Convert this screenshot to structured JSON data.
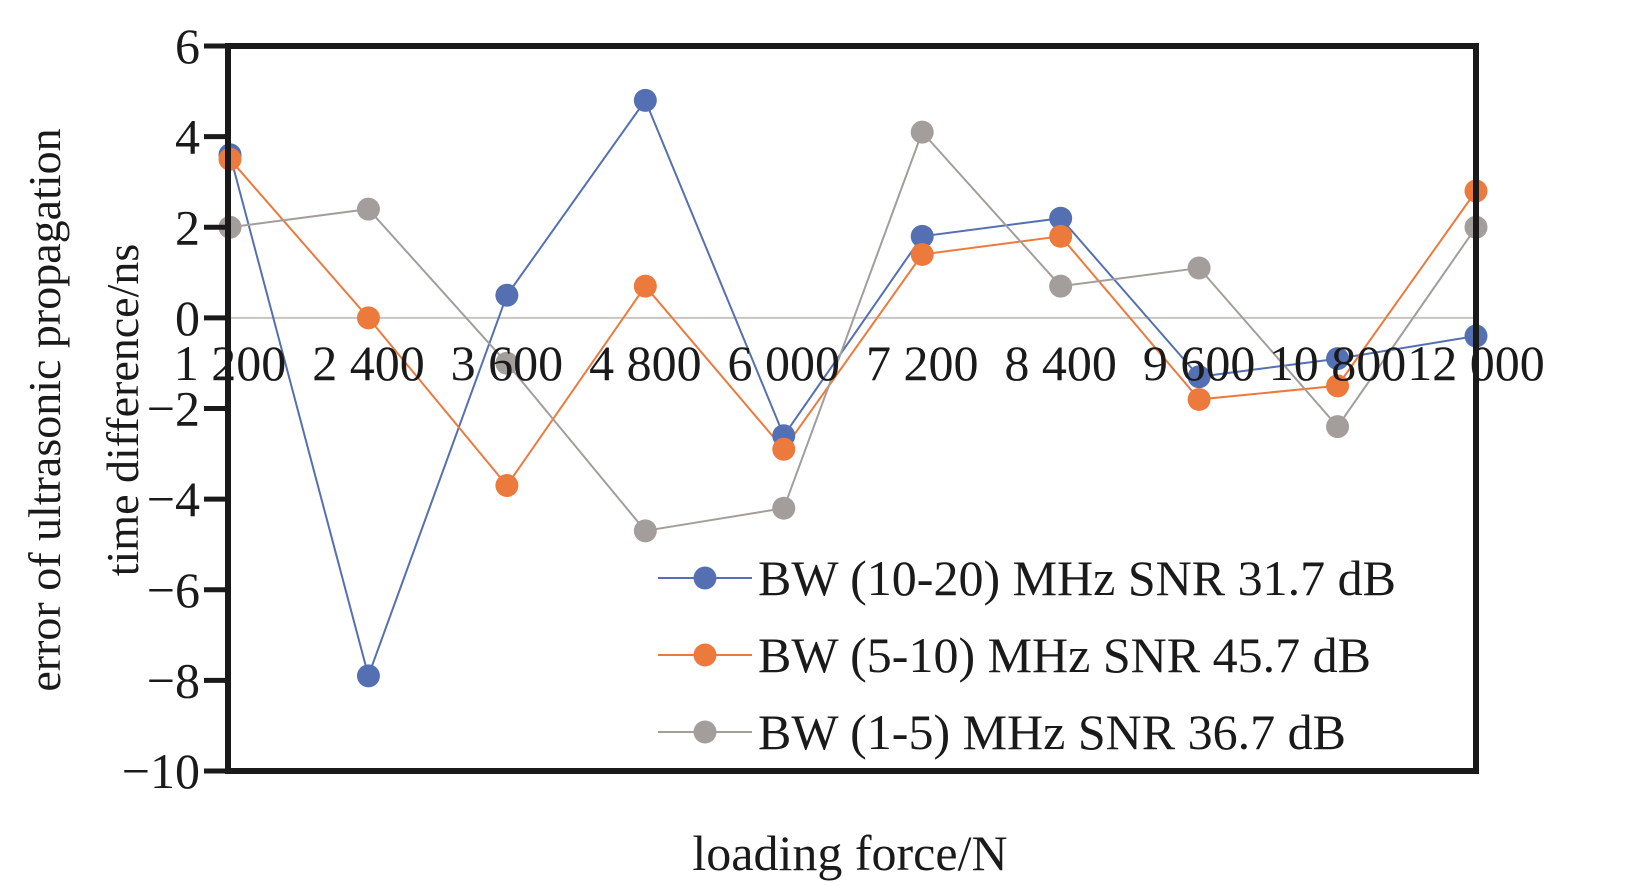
{
  "chart_data": {
    "type": "line",
    "xlabel": "loading force/N",
    "ylabel_lines": [
      "error of ultrasonic propagation",
      "time difference/ns"
    ],
    "x": [
      1200,
      2400,
      3600,
      4800,
      6000,
      7200,
      8400,
      9600,
      10800,
      12000
    ],
    "x_tick_labels": [
      "1 200",
      "2 400",
      "3 600",
      "4 800",
      "6 000",
      "7 200",
      "8 400",
      "9 600",
      "10 800",
      "12 000"
    ],
    "ylim": [
      -10,
      6
    ],
    "y_ticks": [
      -10,
      -8,
      -6,
      -4,
      -2,
      0,
      2,
      4,
      6
    ],
    "y_tick_labels": [
      "−10",
      "−8",
      "−6",
      "−4",
      "−2",
      "0",
      "2",
      "4",
      "6"
    ],
    "grid": false,
    "zero_line": true,
    "legend_position": "bottom-right",
    "series": [
      {
        "name": "BW (10-20) MHz SNR 31.7 dB",
        "color": "#5470b3",
        "values": [
          3.6,
          -7.9,
          0.5,
          4.8,
          -2.6,
          1.8,
          2.2,
          -1.3,
          -0.9,
          -0.4
        ]
      },
      {
        "name": "BW (5-10) MHz SNR 45.7 dB",
        "color": "#ed7a3d",
        "values": [
          3.5,
          0.0,
          -3.7,
          0.7,
          -2.9,
          1.4,
          1.8,
          -1.8,
          -1.5,
          2.8
        ]
      },
      {
        "name": "BW (1-5) MHz SNR 36.7 dB",
        "color": "#a39e9b",
        "values": [
          2.0,
          2.4,
          -1.0,
          -4.7,
          -4.2,
          4.1,
          0.7,
          1.1,
          -2.4,
          2.0
        ]
      }
    ]
  }
}
